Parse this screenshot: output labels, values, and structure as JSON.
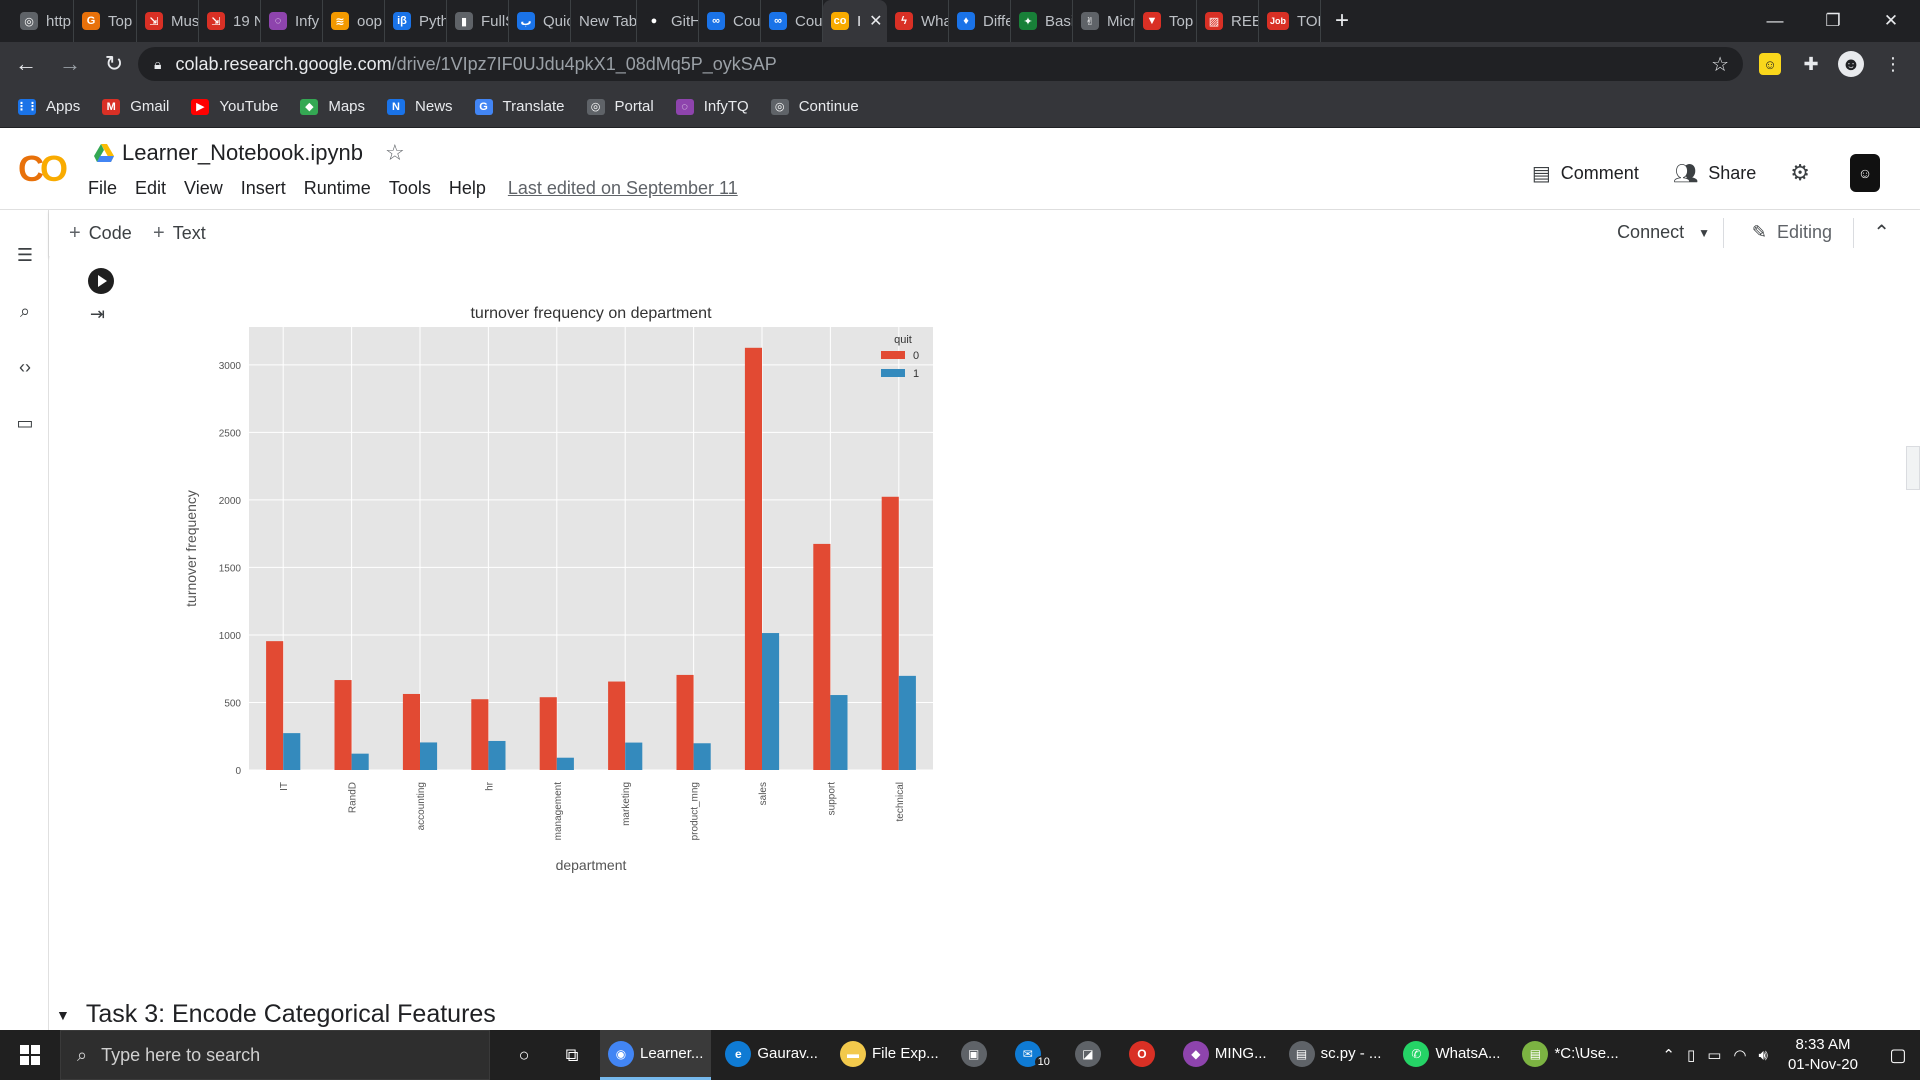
{
  "browser": {
    "tabs": [
      {
        "label": "http",
        "color": "#5f6368",
        "glyph": "◎"
      },
      {
        "label": "Top",
        "color": "#e8710a",
        "glyph": "G"
      },
      {
        "label": "Mus",
        "color": "#d93025",
        "glyph": "⇲"
      },
      {
        "label": "19 N",
        "color": "#d93025",
        "glyph": "⇲"
      },
      {
        "label": "Infy",
        "color": "#8e44ad",
        "glyph": "◌"
      },
      {
        "label": "oop",
        "color": "#f29900",
        "glyph": "≋"
      },
      {
        "label": "Pyth",
        "color": "#1a73e8",
        "glyph": "iβ"
      },
      {
        "label": "FullS",
        "color": "#5f6368",
        "glyph": "▮"
      },
      {
        "label": "Quic",
        "color": "#1a73e8",
        "glyph": "ب"
      },
      {
        "label": "New Tab",
        "color": "",
        "glyph": ""
      },
      {
        "label": "GitH",
        "color": "#202124",
        "glyph": "●"
      },
      {
        "label": "Cou",
        "color": "#1a73e8",
        "glyph": "∞"
      },
      {
        "label": "Cou",
        "color": "#1a73e8",
        "glyph": "∞"
      },
      {
        "label": "I",
        "color": "#f9ab00",
        "glyph": "co",
        "active": true
      },
      {
        "label": "Wha",
        "color": "#d93025",
        "glyph": "ϟ"
      },
      {
        "label": "Diffe",
        "color": "#1a73e8",
        "glyph": "♦"
      },
      {
        "label": "Basi",
        "color": "#188038",
        "glyph": "✦"
      },
      {
        "label": "Micr",
        "color": "#5f6368",
        "glyph": "✌"
      },
      {
        "label": "Top",
        "color": "#d93025",
        "glyph": "▼"
      },
      {
        "label": "REE",
        "color": "#d93025",
        "glyph": "▨"
      },
      {
        "label": "TOP",
        "color": "#d93025",
        "glyph": "Job"
      }
    ],
    "url_host": "colab.research.google.com",
    "url_path": "/drive/1VIpz7IF0UJdu4pkX1_08dMq5P_oykSAP",
    "bookmarks": [
      {
        "label": "Apps",
        "color": "#1a73e8",
        "glyph": "⋮⋮"
      },
      {
        "label": "Gmail",
        "color": "#d93025",
        "glyph": "M"
      },
      {
        "label": "YouTube",
        "color": "#ff0000",
        "glyph": "▶"
      },
      {
        "label": "Maps",
        "color": "#34a853",
        "glyph": "◆"
      },
      {
        "label": "News",
        "color": "#1a73e8",
        "glyph": "N"
      },
      {
        "label": "Translate",
        "color": "#4285f4",
        "glyph": "G"
      },
      {
        "label": "Portal",
        "color": "#5f6368",
        "glyph": "◎"
      },
      {
        "label": "InfyTQ",
        "color": "#8e44ad",
        "glyph": "◌"
      },
      {
        "label": "Continue",
        "color": "#5f6368",
        "glyph": "◎"
      }
    ]
  },
  "colab": {
    "notebook_name": "Learner_Notebook.ipynb",
    "menu": [
      "File",
      "Edit",
      "View",
      "Insert",
      "Runtime",
      "Tools",
      "Help"
    ],
    "last_edited": "Last edited on September 11",
    "comment_label": "Comment",
    "share_label": "Share",
    "add_code": "Code",
    "add_text": "Text",
    "connect_label": "Connect",
    "editing_label": "Editing",
    "section_heading": "Task 3: Encode Categorical Features"
  },
  "chart_data": {
    "type": "bar",
    "title": "turnover frequency on department",
    "xlabel": "department",
    "ylabel": "turnover frequency",
    "categories": [
      "IT",
      "RandD",
      "accounting",
      "hr",
      "management",
      "marketing",
      "product_mng",
      "sales",
      "support",
      "technical"
    ],
    "series": [
      {
        "name": "0",
        "color": "#e24a33",
        "values": [
          954,
          666,
          563,
          524,
          539,
          655,
          704,
          3126,
          1674,
          2023
        ]
      },
      {
        "name": "1",
        "color": "#348abd",
        "values": [
          273,
          121,
          204,
          215,
          91,
          203,
          198,
          1014,
          555,
          697
        ]
      }
    ],
    "legend_title": "quit",
    "legend_position": "top-right",
    "yticks": [
      0,
      500,
      1000,
      1500,
      2000,
      2500,
      3000
    ],
    "ylim": [
      0,
      3000
    ],
    "grid": true
  },
  "taskbar": {
    "search_placeholder": "Type here to search",
    "apps": [
      {
        "label": "Learner...",
        "color": "#4285f4",
        "glyph": "◉",
        "active": true
      },
      {
        "label": "Gaurav...",
        "color": "#0f7bd4",
        "glyph": "e"
      },
      {
        "label": "File Exp...",
        "color": "#f2c94c",
        "glyph": "▬"
      },
      {
        "label": "",
        "color": "#5f6368",
        "glyph": "▣"
      },
      {
        "label": "",
        "color": "#0f7bd4",
        "glyph": "✉"
      },
      {
        "label": "",
        "color": "#5f6368",
        "glyph": "◪"
      },
      {
        "label": "",
        "color": "#d93025",
        "glyph": "O"
      },
      {
        "label": "MING...",
        "color": "#8e44ad",
        "glyph": "◆"
      },
      {
        "label": "sc.py - ...",
        "color": "#5f6368",
        "glyph": "▤"
      },
      {
        "label": "WhatsA...",
        "color": "#25d366",
        "glyph": "✆"
      },
      {
        "label": "*C:\\Use...",
        "color": "#7cb342",
        "glyph": "▤"
      }
    ],
    "mail_badge": "10",
    "time": "8:33 AM",
    "date": "01-Nov-20"
  }
}
